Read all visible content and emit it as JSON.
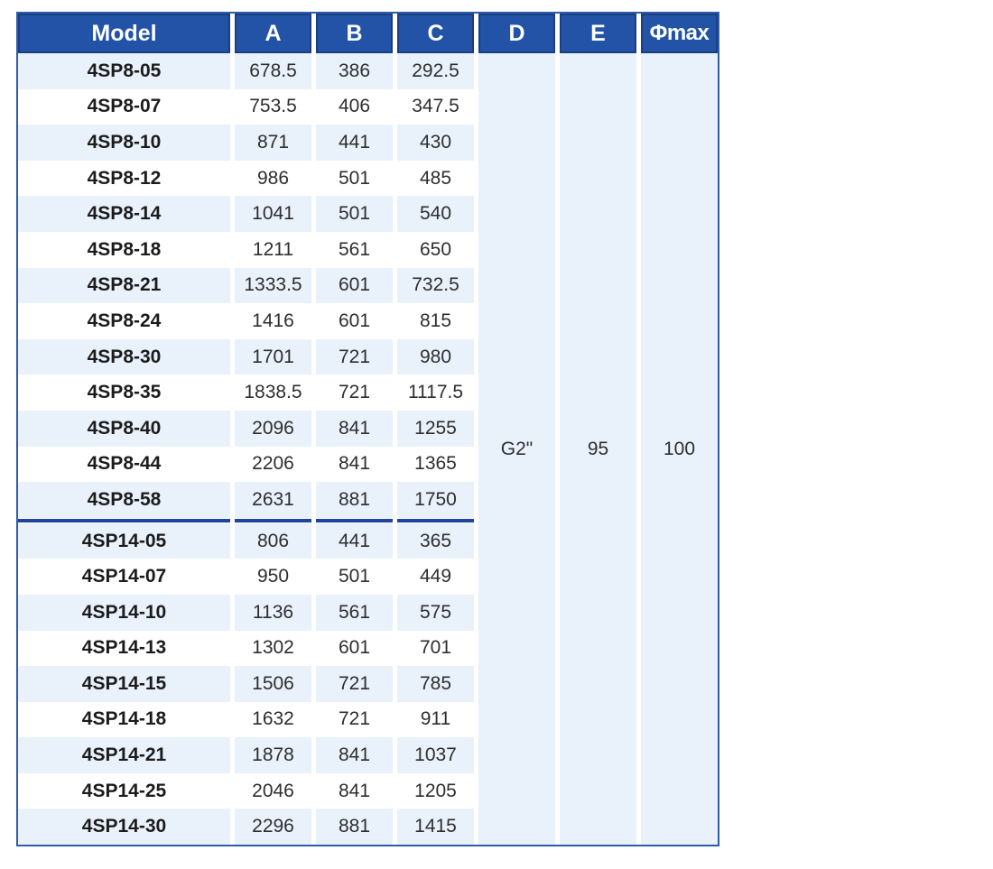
{
  "table": {
    "headers": [
      "Model",
      "A",
      "B",
      "C",
      "D",
      "E",
      "Φmax"
    ],
    "separator_after_row": 12,
    "rows": [
      {
        "model": "4SP8-05",
        "a": "678.5",
        "b": "386",
        "c": "292.5"
      },
      {
        "model": "4SP8-07",
        "a": "753.5",
        "b": "406",
        "c": "347.5"
      },
      {
        "model": "4SP8-10",
        "a": "871",
        "b": "441",
        "c": "430"
      },
      {
        "model": "4SP8-12",
        "a": "986",
        "b": "501",
        "c": "485"
      },
      {
        "model": "4SP8-14",
        "a": "1041",
        "b": "501",
        "c": "540"
      },
      {
        "model": "4SP8-18",
        "a": "1211",
        "b": "561",
        "c": "650"
      },
      {
        "model": "4SP8-21",
        "a": "1333.5",
        "b": "601",
        "c": "732.5"
      },
      {
        "model": "4SP8-24",
        "a": "1416",
        "b": "601",
        "c": "815"
      },
      {
        "model": "4SP8-30",
        "a": "1701",
        "b": "721",
        "c": "980"
      },
      {
        "model": "4SP8-35",
        "a": "1838.5",
        "b": "721",
        "c": "1117.5"
      },
      {
        "model": "4SP8-40",
        "a": "2096",
        "b": "841",
        "c": "1255"
      },
      {
        "model": "4SP8-44",
        "a": "2206",
        "b": "841",
        "c": "1365"
      },
      {
        "model": "4SP8-58",
        "a": "2631",
        "b": "881",
        "c": "1750"
      },
      {
        "model": "4SP14-05",
        "a": "806",
        "b": "441",
        "c": "365"
      },
      {
        "model": "4SP14-07",
        "a": "950",
        "b": "501",
        "c": "449"
      },
      {
        "model": "4SP14-10",
        "a": "1136",
        "b": "561",
        "c": "575"
      },
      {
        "model": "4SP14-13",
        "a": "1302",
        "b": "601",
        "c": "701"
      },
      {
        "model": "4SP14-15",
        "a": "1506",
        "b": "721",
        "c": "785"
      },
      {
        "model": "4SP14-18",
        "a": "1632",
        "b": "721",
        "c": "911"
      },
      {
        "model": "4SP14-21",
        "a": "1878",
        "b": "841",
        "c": "1037"
      },
      {
        "model": "4SP14-25",
        "a": "2046",
        "b": "841",
        "c": "1205"
      },
      {
        "model": "4SP14-30",
        "a": "2296",
        "b": "881",
        "c": "1415"
      }
    ],
    "merged": {
      "d": "G2\"",
      "e": "95",
      "phimax": "100"
    }
  },
  "colors": {
    "header_bg": "#2253a6",
    "header_border": "#1b3e80",
    "outer_border": "#2e5cab",
    "light_row_bg": "#e9f1fb",
    "group_separator": "#1e459b",
    "header_text": "#ffffff",
    "body_text": "#2e2e2e"
  }
}
